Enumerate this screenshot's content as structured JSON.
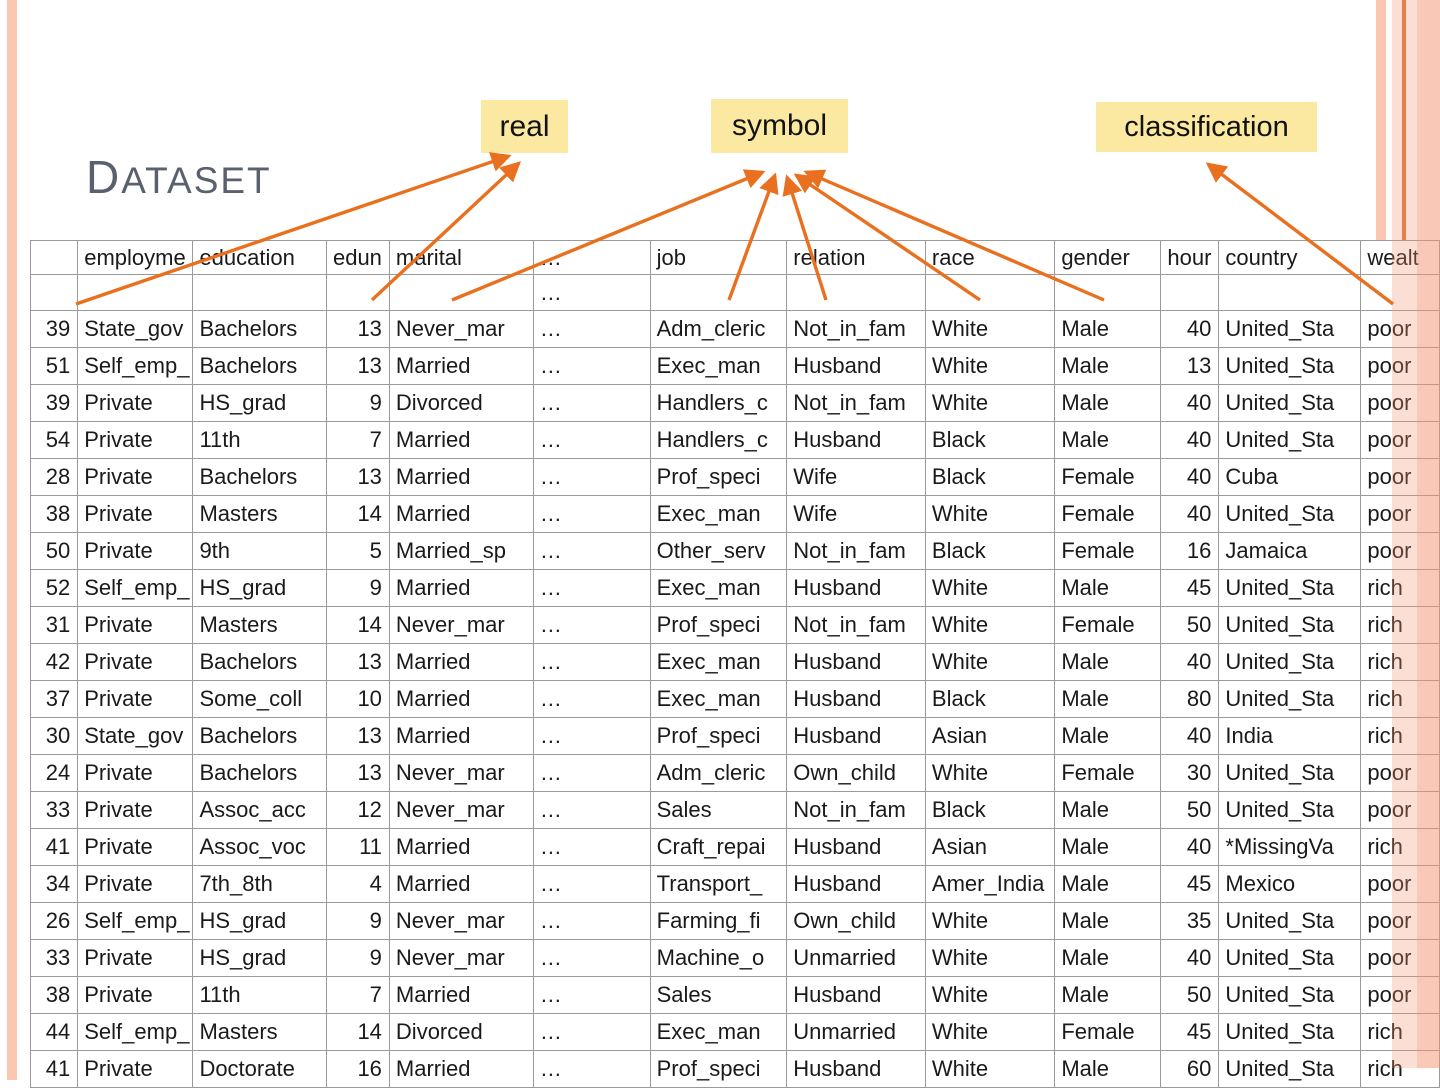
{
  "slide": {
    "title": "DATASET",
    "background_color": "#FFFFFF",
    "stripe_color": "#FBC7B0",
    "stripe_dark_line_color": "#E2743C",
    "title_color": "#59616E"
  },
  "annotations": {
    "label_bg_color": "#FBE9A1",
    "arrow_color": "#E8701E",
    "labels": [
      {
        "id": "real",
        "text": "real",
        "points_to_columns": [
          "age",
          "edunum"
        ]
      },
      {
        "id": "symbol",
        "text": "symbol",
        "points_to_columns": [
          "marital",
          "job",
          "relation",
          "race",
          "gender"
        ]
      },
      {
        "id": "classification",
        "text": "classification",
        "points_to_columns": [
          "wealth"
        ]
      }
    ]
  },
  "table": {
    "headers": [
      "",
      "employme",
      "education",
      "edun",
      "marital",
      "…",
      "job",
      "relation",
      "race",
      "gender",
      "hour",
      "country",
      "wealt"
    ],
    "filter_row": [
      "",
      "",
      "",
      "",
      "",
      "…",
      "",
      "",
      "",
      "",
      "",
      "",
      ""
    ],
    "rows": [
      [
        "39",
        "State_gov",
        "Bachelors",
        "13",
        "Never_mar",
        "…",
        "Adm_cleric",
        "Not_in_fam",
        "White",
        "Male",
        "40",
        "United_Sta",
        "poor"
      ],
      [
        "51",
        "Self_emp_",
        "Bachelors",
        "13",
        "Married",
        "…",
        "Exec_man",
        "Husband",
        "White",
        "Male",
        "13",
        "United_Sta",
        "poor"
      ],
      [
        "39",
        "Private",
        "HS_grad",
        "9",
        "Divorced",
        "…",
        "Handlers_c",
        "Not_in_fam",
        "White",
        "Male",
        "40",
        "United_Sta",
        "poor"
      ],
      [
        "54",
        "Private",
        "11th",
        "7",
        "Married",
        "…",
        "Handlers_c",
        "Husband",
        "Black",
        "Male",
        "40",
        "United_Sta",
        "poor"
      ],
      [
        "28",
        "Private",
        "Bachelors",
        "13",
        "Married",
        "…",
        "Prof_speci",
        "Wife",
        "Black",
        "Female",
        "40",
        "Cuba",
        "poor"
      ],
      [
        "38",
        "Private",
        "Masters",
        "14",
        "Married",
        "…",
        "Exec_man",
        "Wife",
        "White",
        "Female",
        "40",
        "United_Sta",
        "poor"
      ],
      [
        "50",
        "Private",
        "9th",
        "5",
        "Married_sp",
        "…",
        "Other_serv",
        "Not_in_fam",
        "Black",
        "Female",
        "16",
        "Jamaica",
        "poor"
      ],
      [
        "52",
        "Self_emp_",
        "HS_grad",
        "9",
        "Married",
        "…",
        "Exec_man",
        "Husband",
        "White",
        "Male",
        "45",
        "United_Sta",
        "rich"
      ],
      [
        "31",
        "Private",
        "Masters",
        "14",
        "Never_mar",
        "…",
        "Prof_speci",
        "Not_in_fam",
        "White",
        "Female",
        "50",
        "United_Sta",
        "rich"
      ],
      [
        "42",
        "Private",
        "Bachelors",
        "13",
        "Married",
        "…",
        "Exec_man",
        "Husband",
        "White",
        "Male",
        "40",
        "United_Sta",
        "rich"
      ],
      [
        "37",
        "Private",
        "Some_coll",
        "10",
        "Married",
        "…",
        "Exec_man",
        "Husband",
        "Black",
        "Male",
        "80",
        "United_Sta",
        "rich"
      ],
      [
        "30",
        "State_gov",
        "Bachelors",
        "13",
        "Married",
        "…",
        "Prof_speci",
        "Husband",
        "Asian",
        "Male",
        "40",
        "India",
        "rich"
      ],
      [
        "24",
        "Private",
        "Bachelors",
        "13",
        "Never_mar",
        "…",
        "Adm_cleric",
        "Own_child",
        "White",
        "Female",
        "30",
        "United_Sta",
        "poor"
      ],
      [
        "33",
        "Private",
        "Assoc_acc",
        "12",
        "Never_mar",
        "…",
        "Sales",
        "Not_in_fam",
        "Black",
        "Male",
        "50",
        "United_Sta",
        "poor"
      ],
      [
        "41",
        "Private",
        "Assoc_voc",
        "11",
        "Married",
        "…",
        "Craft_repai",
        "Husband",
        "Asian",
        "Male",
        "40",
        "*MissingVa",
        "rich"
      ],
      [
        "34",
        "Private",
        "7th_8th",
        "4",
        "Married",
        "…",
        "Transport_",
        "Husband",
        "Amer_India",
        "Male",
        "45",
        "Mexico",
        "poor"
      ],
      [
        "26",
        "Self_emp_",
        "HS_grad",
        "9",
        "Never_mar",
        "…",
        "Farming_fi",
        "Own_child",
        "White",
        "Male",
        "35",
        "United_Sta",
        "poor"
      ],
      [
        "33",
        "Private",
        "HS_grad",
        "9",
        "Never_mar",
        "…",
        "Machine_o",
        "Unmarried",
        "White",
        "Male",
        "40",
        "United_Sta",
        "poor"
      ],
      [
        "38",
        "Private",
        "11th",
        "7",
        "Married",
        "…",
        "Sales",
        "Husband",
        "White",
        "Male",
        "50",
        "United_Sta",
        "poor"
      ],
      [
        "44",
        "Self_emp_",
        "Masters",
        "14",
        "Divorced",
        "…",
        "Exec_man",
        "Unmarried",
        "White",
        "Female",
        "45",
        "United_Sta",
        "rich"
      ],
      [
        "41",
        "Private",
        "Doctorate",
        "16",
        "Married",
        "…",
        "Prof_speci",
        "Husband",
        "White",
        "Male",
        "60",
        "United_Sta",
        "rich"
      ]
    ]
  }
}
